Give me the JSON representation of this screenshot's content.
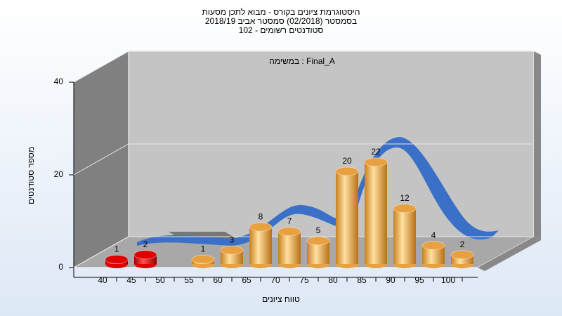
{
  "chart_data": {
    "type": "bar",
    "title": [
      "היסטוגרמת ציונים בקורס - מבוא לתכן מסעות",
      "בסמסטר  (02/2018)  סמסטר אביב 2018/19",
      "סטודנטים רשומים - 102"
    ],
    "annotation": "במשימה : Final_A",
    "x_label": "טווח ציונים",
    "y_label": "מספר סטודנטים",
    "categories": [
      "40",
      "45",
      "50",
      "55",
      "60",
      "65",
      "70",
      "75",
      "80",
      "85",
      "90",
      "95",
      "100"
    ],
    "values": [
      1,
      2,
      0,
      1,
      3,
      8,
      7,
      5,
      20,
      22,
      12,
      4,
      2
    ],
    "colors": [
      "#e00000",
      "#e00000",
      "#e8a040",
      "#e8a040",
      "#e8a040",
      "#e8a040",
      "#e8a040",
      "#e8a040",
      "#e8a040",
      "#e8a040",
      "#e8a040",
      "#e8a040",
      "#e8a040"
    ],
    "ylim": [
      0,
      40
    ],
    "yticks": [
      0,
      20,
      40
    ],
    "grid": true
  }
}
